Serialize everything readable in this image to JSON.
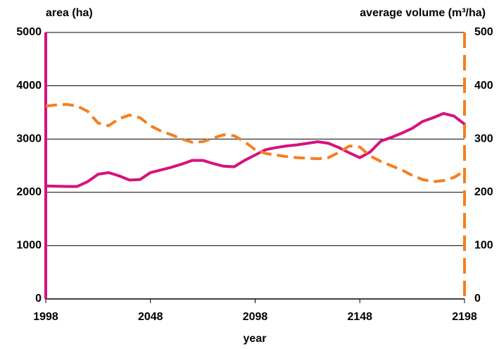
{
  "chart_data": {
    "type": "line",
    "y_label": "area (ha)",
    "y2_label": "average volume (m³/ha)",
    "x_label": "year",
    "x": [
      1998,
      2003,
      2008,
      2013,
      2018,
      2023,
      2028,
      2033,
      2038,
      2043,
      2048,
      2053,
      2058,
      2063,
      2068,
      2073,
      2078,
      2083,
      2088,
      2093,
      2098,
      2103,
      2108,
      2113,
      2118,
      2123,
      2128,
      2133,
      2138,
      2143,
      2148,
      2153,
      2158,
      2163,
      2168,
      2173,
      2178,
      2183,
      2188,
      2193,
      2198
    ],
    "series": [
      {
        "color": "#d6127e",
        "values": [
          2120,
          2115,
          2110,
          2110,
          2200,
          2340,
          2370,
          2310,
          2230,
          2240,
          2370,
          2420,
          2470,
          2530,
          2600,
          2600,
          2540,
          2490,
          2480,
          2600,
          2700,
          2800,
          2840,
          2870,
          2890,
          2920,
          2950,
          2920,
          2840,
          2740,
          2650,
          2760,
          2960,
          3030,
          3110,
          3200,
          3330,
          3400,
          3480,
          3430,
          3280
        ]
      },
      {
        "color": "#f57f20",
        "axis": "y2",
        "dashed": true,
        "values": [
          362,
          364,
          365,
          362,
          352,
          330,
          325,
          338,
          345,
          340,
          325,
          315,
          308,
          300,
          294,
          295,
          302,
          308,
          306,
          295,
          280,
          273,
          270,
          267,
          265,
          264,
          263,
          265,
          275,
          287,
          285,
          268,
          258,
          250,
          242,
          232,
          224,
          220,
          222,
          228,
          240
        ]
      }
    ],
    "xlim": [
      1998,
      2198
    ],
    "xticks": [
      1998,
      2048,
      2098,
      2148,
      2198
    ],
    "ylim": [
      0,
      5000
    ],
    "yticks": [
      0,
      1000,
      2000,
      3000,
      4000,
      5000
    ],
    "y2lim": [
      0,
      500
    ],
    "y2ticks": [
      0,
      100,
      200,
      300,
      400,
      500
    ],
    "grid": true
  }
}
